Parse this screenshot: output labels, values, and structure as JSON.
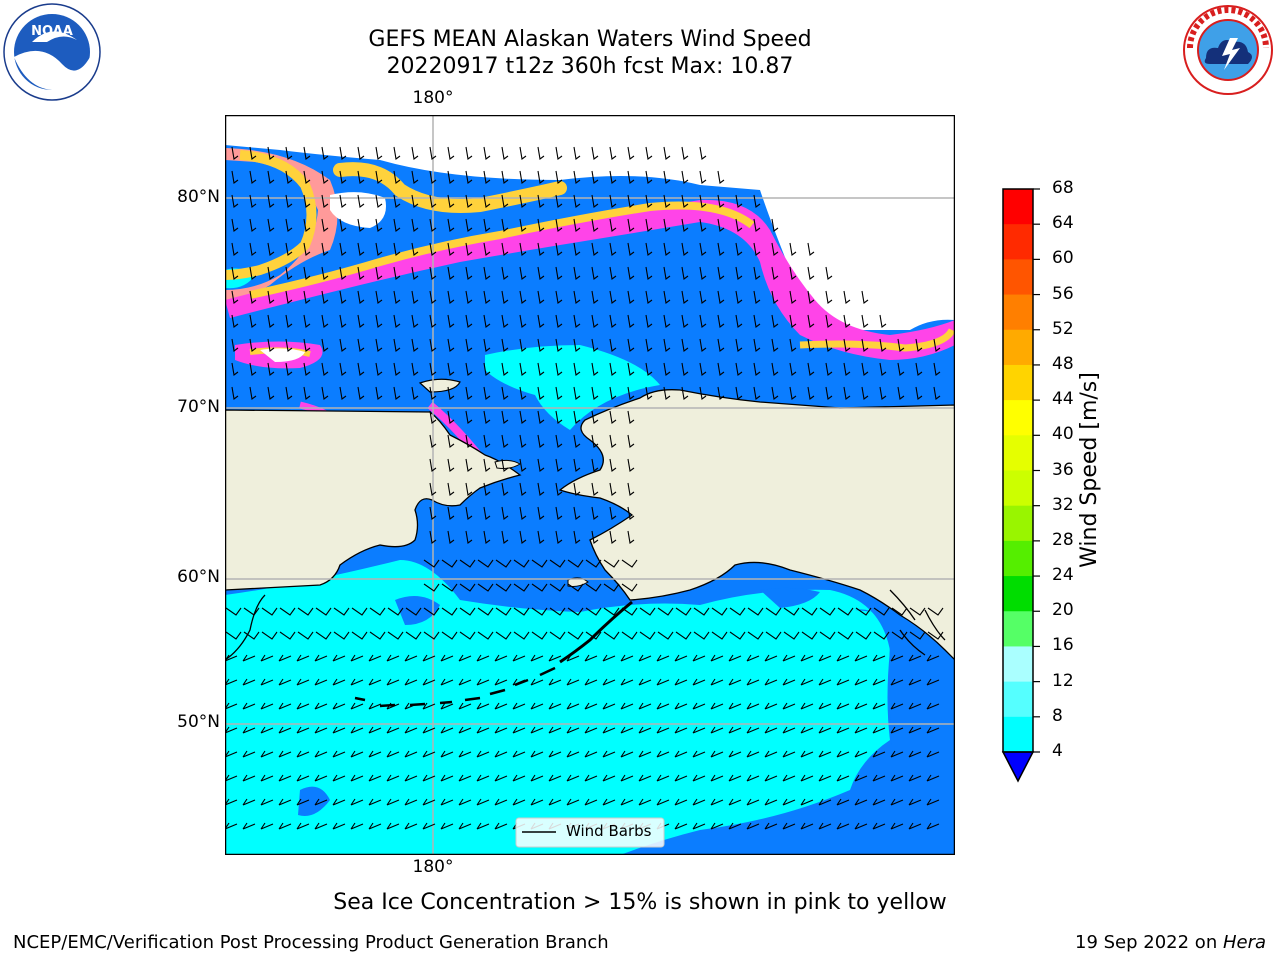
{
  "title": {
    "line1": "GEFS MEAN Alaskan Waters Wind Speed",
    "line2": "20220917 t12z 360h fcst   Max: 10.87"
  },
  "logos": {
    "left": {
      "text": "NOAA",
      "ring": "NATIONAL OCEANIC AND ATMOSPHERIC ADMINISTRATION · U.S. DEPARTMENT OF COMMERCE"
    },
    "right": {
      "ring": "NATIONAL WEATHER SERVICE"
    }
  },
  "map": {
    "lon_label_top": "180°",
    "lon_label_bottom": "180°",
    "lat_labels": [
      "80°N",
      "70°N",
      "60°N",
      "50°N"
    ],
    "legend_label": "Wind Barbs",
    "colors": {
      "wind_4_8": "#0b7dff",
      "wind_8_12": "#00ffff",
      "land": "#efefdc",
      "ice_low": "#ff44e8",
      "ice_mid": "#ff9a9a",
      "ice_high": "#ffd23c",
      "grid": "#b4b4b4"
    }
  },
  "colorbar": {
    "label": "Wind Speed [m/s]",
    "ticks": [
      "68",
      "64",
      "60",
      "56",
      "52",
      "48",
      "44",
      "40",
      "36",
      "32",
      "28",
      "24",
      "20",
      "16",
      "12",
      "8",
      "4"
    ],
    "colors": [
      "#ff0000",
      "#ff2a00",
      "#ff5500",
      "#ff7f00",
      "#ffaa00",
      "#ffd400",
      "#ffff00",
      "#e5ff00",
      "#ccff00",
      "#99f500",
      "#55ee00",
      "#00dd00",
      "#55ff66",
      "#aaffff",
      "#55ffff",
      "#00ffff",
      "#0080ff"
    ],
    "extend_color": "#0000ff"
  },
  "footer": {
    "note": "Sea Ice Concentration > 15% is shown in pink to yellow",
    "left": "NCEP/EMC/Verification Post Processing Product Generation Branch",
    "right_prefix": "19 Sep 2022 on ",
    "right_host": "Hera"
  }
}
